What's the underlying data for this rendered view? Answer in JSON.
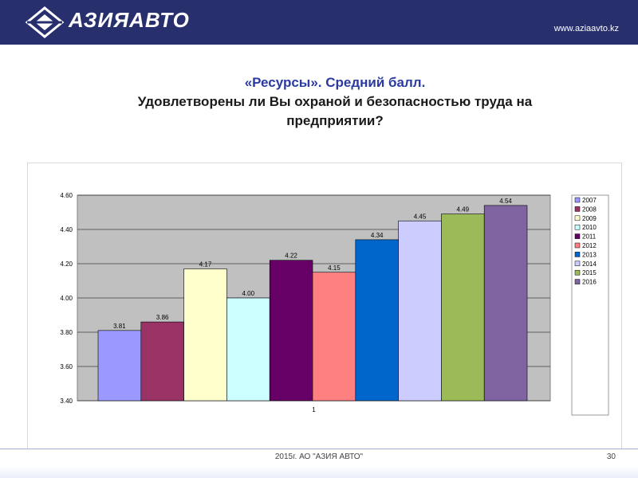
{
  "header": {
    "logo_text": "АЗИЯАВТО",
    "site_url": "www.aziaavto.kz"
  },
  "title": {
    "line1": "«Ресурсы». Средний балл.",
    "line2": "Удовлетворены ли Вы охраной и безопасностью труда на предприятии?"
  },
  "chart_data": {
    "type": "bar",
    "categories": [
      "1"
    ],
    "series": [
      {
        "name": "2007",
        "values": [
          3.81
        ],
        "color": "#9999ff"
      },
      {
        "name": "2008",
        "values": [
          3.86
        ],
        "color": "#993366"
      },
      {
        "name": "2009",
        "values": [
          4.17
        ],
        "color": "#ffffcc"
      },
      {
        "name": "2010",
        "values": [
          4.0
        ],
        "color": "#ccffff"
      },
      {
        "name": "2011",
        "values": [
          4.22
        ],
        "color": "#660066"
      },
      {
        "name": "2012",
        "values": [
          4.15
        ],
        "color": "#ff8080"
      },
      {
        "name": "2013",
        "values": [
          4.34
        ],
        "color": "#0066cc"
      },
      {
        "name": "2014",
        "values": [
          4.45
        ],
        "color": "#ccccff"
      },
      {
        "name": "2015",
        "values": [
          4.49
        ],
        "color": "#9bbb59"
      },
      {
        "name": "2016",
        "values": [
          4.54
        ],
        "color": "#8064a2"
      }
    ],
    "data_labels": [
      "3.81",
      "3.86",
      "4.17",
      "4.00",
      "4.22",
      "4.15",
      "4.34",
      "4.45",
      "4.49",
      "4.54"
    ],
    "yticks": [
      "3.40",
      "3.60",
      "3.80",
      "4.00",
      "4.20",
      "4.40",
      "4.60"
    ],
    "ylim": [
      3.4,
      4.6
    ],
    "xlabel": "",
    "ylabel": "",
    "grid": true,
    "legend_position": "right",
    "plot_background": "#c0c0c0"
  },
  "footer": {
    "text": "2015г. АО \"АЗИЯ АВТО\"",
    "page_number": "30"
  }
}
